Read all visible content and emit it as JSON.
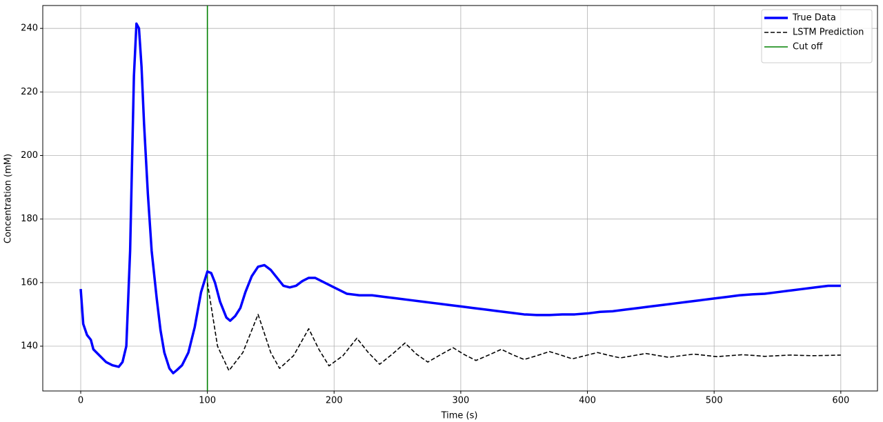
{
  "chart_data": {
    "type": "line",
    "xlabel": "Time (s)",
    "ylabel": "Concentration (mM)",
    "xlim": [
      -29.95,
      628.95
    ],
    "ylim": [
      125.9,
      247.2
    ],
    "xticks": [
      0,
      100,
      200,
      300,
      400,
      500,
      600
    ],
    "yticks": [
      140,
      160,
      180,
      200,
      220,
      240
    ],
    "grid": true,
    "legend": "upper right",
    "series": [
      {
        "name": "True Data",
        "color": "#0000ff",
        "width": 3.5,
        "dash": "solid",
        "x": [
          0,
          2,
          5,
          8,
          10,
          15,
          20,
          25,
          30,
          33,
          36,
          39,
          42,
          44,
          46,
          48,
          50,
          53,
          56,
          60,
          63,
          66,
          70,
          73,
          76,
          80,
          85,
          90,
          95,
          100,
          103,
          106,
          110,
          115,
          118,
          122,
          126,
          130,
          135,
          140,
          145,
          150,
          155,
          160,
          165,
          170,
          175,
          180,
          185,
          190,
          200,
          210,
          220,
          230,
          240,
          250,
          260,
          270,
          280,
          290,
          300,
          310,
          320,
          330,
          340,
          350,
          360,
          370,
          380,
          390,
          400,
          410,
          420,
          430,
          440,
          450,
          460,
          470,
          480,
          490,
          500,
          510,
          520,
          530,
          540,
          550,
          560,
          570,
          580,
          590,
          600
        ],
        "values": [
          158,
          147,
          143.5,
          142,
          139,
          137,
          135,
          134,
          133.5,
          135,
          140,
          170,
          225,
          241.5,
          240,
          228,
          210,
          188,
          170,
          155,
          145,
          138,
          133,
          131.5,
          132.5,
          134,
          138,
          146,
          157,
          163.5,
          163,
          160,
          154,
          149,
          148,
          149.5,
          152,
          157,
          162,
          165,
          165.5,
          164,
          161.5,
          159,
          158.5,
          159,
          160.5,
          161.5,
          161.5,
          160.5,
          158.5,
          156.5,
          156,
          156,
          155.5,
          155,
          154.5,
          154,
          153.5,
          153,
          152.5,
          152,
          151.5,
          151,
          150.5,
          150,
          149.8,
          149.8,
          150,
          150,
          150.3,
          150.8,
          151,
          151.5,
          152,
          152.5,
          153,
          153.5,
          154,
          154.5,
          155,
          155.5,
          156,
          156.3,
          156.5,
          157,
          157.5,
          158,
          158.5,
          159,
          159
        ]
      },
      {
        "name": "LSTM Prediction",
        "color": "#000000",
        "width": 1.6,
        "dash": "6,3",
        "x": [
          100,
          108,
          117,
          128,
          140,
          150,
          157,
          168,
          180,
          188,
          196,
          207,
          218,
          227,
          236,
          246,
          256,
          265,
          274,
          284,
          294,
          303,
          312,
          322,
          332,
          341,
          350,
          360,
          370,
          379,
          388,
          398,
          408,
          417,
          426,
          436,
          446,
          455,
          464,
          474,
          484,
          493,
          502,
          512,
          522,
          531,
          540,
          550,
          560,
          569,
          578,
          590,
          600
        ],
        "values": [
          160,
          140,
          132.3,
          138,
          150,
          138,
          133,
          137,
          145.5,
          139,
          133.8,
          137,
          142.5,
          138,
          134.3,
          137.5,
          141,
          137.5,
          135,
          137.3,
          139.5,
          137.3,
          135.5,
          137.2,
          139,
          137.3,
          135.8,
          137,
          138.3,
          137.2,
          136,
          137,
          138,
          137.1,
          136.3,
          137,
          137.7,
          137.1,
          136.5,
          137,
          137.5,
          137.1,
          136.7,
          137,
          137.3,
          137.1,
          136.8,
          137,
          137.2,
          137.1,
          137,
          137.1,
          137.2
        ]
      }
    ],
    "vlines": [
      {
        "name": "Cut off",
        "x": 100,
        "color": "#008000"
      }
    ]
  }
}
